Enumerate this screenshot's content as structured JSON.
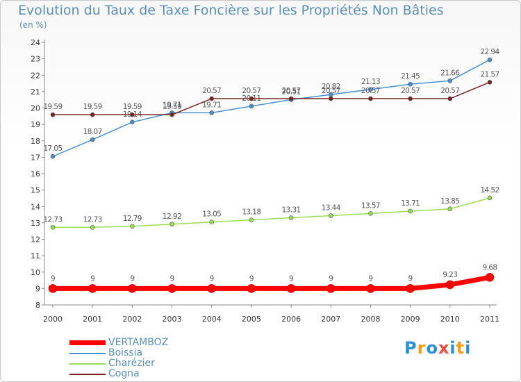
{
  "chart_data": {
    "type": "line",
    "title": "Evolution du Taux de Taxe Foncière sur les Propriétés Non Bâties",
    "ylabel": "(en %)",
    "xlabel": "",
    "categories": [
      "2000",
      "2001",
      "2002",
      "2003",
      "2004",
      "2005",
      "2006",
      "2007",
      "2008",
      "2009",
      "2010",
      "2011"
    ],
    "ylim": [
      8,
      24
    ],
    "yticks": [
      "8",
      "9",
      "10",
      "11",
      "12",
      "13",
      "14",
      "15",
      "16",
      "17",
      "18",
      "19",
      "20",
      "21",
      "22",
      "23",
      "24"
    ],
    "grid": false,
    "legend_position": "bottom-left",
    "series": [
      {
        "name": "VERTAMBOZ",
        "color": "#ff0000",
        "values": [
          9,
          9,
          9,
          9,
          9,
          9,
          9,
          9,
          9,
          9,
          9.23,
          9.68
        ],
        "labels": [
          "9",
          "9",
          "9",
          "9",
          "9",
          "9",
          "9",
          "9",
          "9",
          "9",
          "9.23",
          "9.68"
        ]
      },
      {
        "name": "Boissia",
        "color": "#4a90d0",
        "values": [
          17.05,
          18.07,
          19.14,
          19.71,
          19.71,
          20.11,
          20.51,
          20.82,
          21.13,
          21.45,
          21.66,
          22.94
        ],
        "labels": [
          "17.05",
          "18.07",
          "19.14",
          "19.71",
          "19.71",
          "20.11",
          "20.51",
          "20.82",
          "21.13",
          "21.45",
          "21.66",
          "22.94"
        ]
      },
      {
        "name": "Charézier",
        "color": "#99dd55",
        "values": [
          12.73,
          12.73,
          12.79,
          12.92,
          13.05,
          13.18,
          13.31,
          13.44,
          13.57,
          13.71,
          13.85,
          14.52
        ],
        "labels": [
          "12.73",
          "12.73",
          "12.79",
          "12.92",
          "13.05",
          "13.18",
          "13.31",
          "13.44",
          "13.57",
          "13.71",
          "13.85",
          "14.52"
        ]
      },
      {
        "name": "Cogna",
        "color": "#7a2222",
        "values": [
          19.59,
          19.59,
          19.59,
          19.59,
          20.57,
          20.57,
          20.57,
          20.57,
          20.57,
          20.57,
          20.57,
          21.57
        ],
        "labels": [
          "19.59",
          "19.59",
          "19.59",
          "19.59",
          "20.57",
          "20.57",
          "20.57",
          "20.57",
          "20.57",
          "20.57",
          "20.57",
          "21.57"
        ]
      }
    ]
  },
  "logo": {
    "letters": [
      "P",
      "r",
      "o",
      "x",
      "i",
      "t",
      "i"
    ],
    "colors": [
      "#2b8fd6",
      "#f39c12",
      "#2b8fd6",
      "#e74c3c",
      "#2b8fd6",
      "#f39c12",
      "#2b8fd6"
    ]
  }
}
